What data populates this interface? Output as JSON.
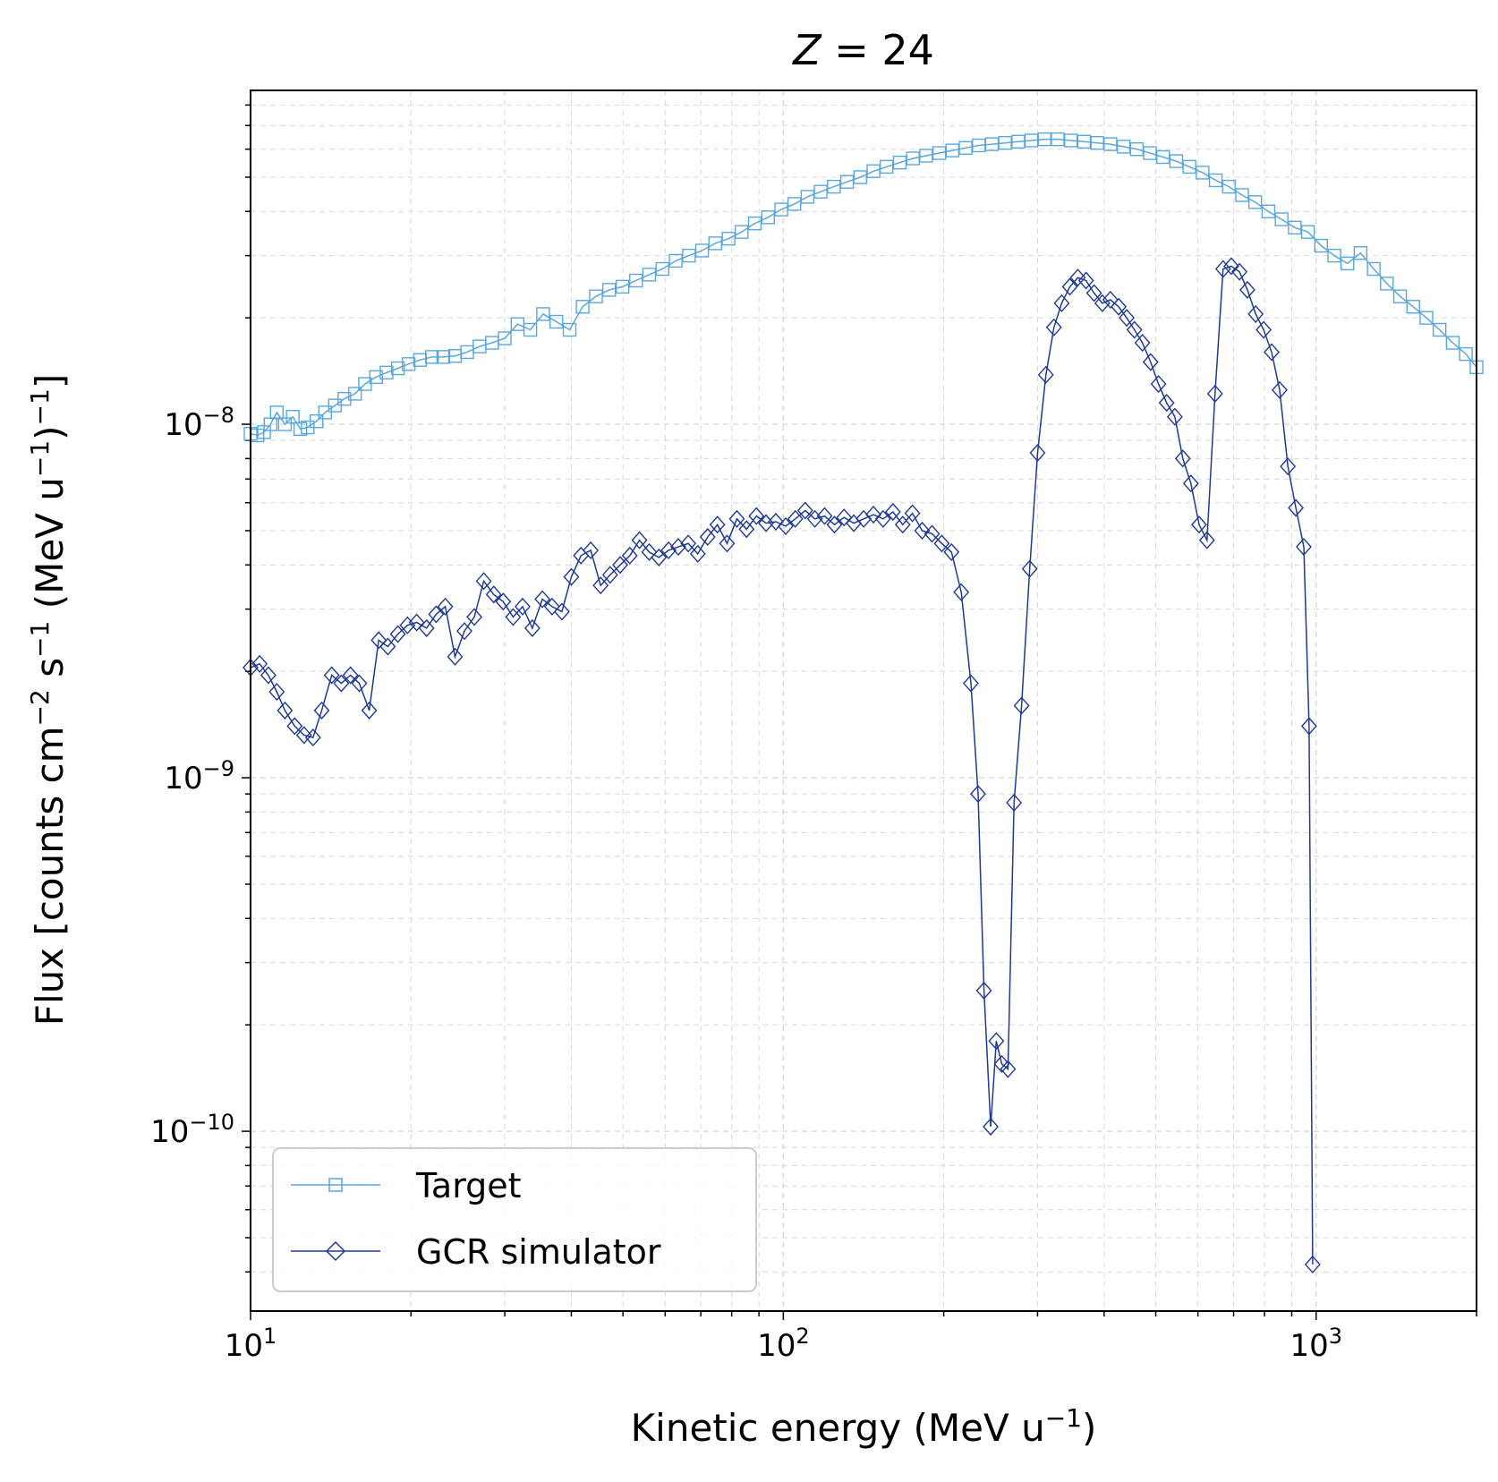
{
  "chart_data": {
    "type": "line",
    "title": {
      "italic": "Z",
      "rest": " = 24"
    },
    "xlabel": {
      "base": "Kinetic energy (MeV u",
      "sup": "−1",
      "end": ")"
    },
    "ylabel": {
      "p1": "Flux [counts cm",
      "s1": "−2",
      "p2": " s",
      "s2": "−1",
      "p3": " (MeV u",
      "s3": "−1",
      "p4": ")",
      "s4": "−1",
      "p5": "]"
    },
    "x_scale": "log",
    "y_scale": "log",
    "xlim": [
      10,
      2000
    ],
    "ylim": [
      3.1e-11,
      8.8e-08
    ],
    "x_ticks": [
      {
        "value": 10,
        "base": "10",
        "exp": "1"
      },
      {
        "value": 100,
        "base": "10",
        "exp": "2"
      },
      {
        "value": 1000,
        "base": "10",
        "exp": "3"
      }
    ],
    "y_ticks": [
      {
        "value": 1e-10,
        "base": "10",
        "exp": "−10"
      },
      {
        "value": 1e-09,
        "base": "10",
        "exp": "−9"
      },
      {
        "value": 1e-08,
        "base": "10",
        "exp": "−8"
      }
    ],
    "grid": true,
    "legend_position": "bottom-left",
    "series": [
      {
        "name": "Target",
        "color": "#5aa7dc",
        "marker": "square",
        "points": [
          [
            10.0,
            9.4e-09
          ],
          [
            10.3,
            9.3e-09
          ],
          [
            10.6,
            9.5e-09
          ],
          [
            10.9,
            1e-08
          ],
          [
            11.2,
            1.08e-08
          ],
          [
            11.6,
            1e-08
          ],
          [
            12.0,
            1.05e-08
          ],
          [
            12.4,
            9.7e-09
          ],
          [
            12.8,
            9.8e-09
          ],
          [
            13.3,
            1.02e-08
          ],
          [
            13.8,
            1.08e-08
          ],
          [
            14.4,
            1.13e-08
          ],
          [
            15.0,
            1.18e-08
          ],
          [
            15.7,
            1.22e-08
          ],
          [
            16.4,
            1.3e-08
          ],
          [
            17.2,
            1.36e-08
          ],
          [
            18.0,
            1.4e-08
          ],
          [
            18.9,
            1.44e-08
          ],
          [
            19.8,
            1.48e-08
          ],
          [
            20.8,
            1.52e-08
          ],
          [
            21.9,
            1.55e-08
          ],
          [
            23.0,
            1.55e-08
          ],
          [
            24.2,
            1.56e-08
          ],
          [
            25.5,
            1.6e-08
          ],
          [
            26.9,
            1.66e-08
          ],
          [
            28.4,
            1.7e-08
          ],
          [
            30.0,
            1.75e-08
          ],
          [
            31.7,
            1.92e-08
          ],
          [
            33.5,
            1.85e-08
          ],
          [
            35.4,
            2.05e-08
          ],
          [
            37.5,
            1.95e-08
          ],
          [
            39.7,
            1.85e-08
          ],
          [
            42.0,
            2.15e-08
          ],
          [
            44.5,
            2.3e-08
          ],
          [
            47.1,
            2.4e-08
          ],
          [
            49.9,
            2.45e-08
          ],
          [
            52.9,
            2.55e-08
          ],
          [
            56.0,
            2.65e-08
          ],
          [
            59.3,
            2.75e-08
          ],
          [
            62.8,
            2.9e-08
          ],
          [
            66.5,
            3e-08
          ],
          [
            70.4,
            3.1e-08
          ],
          [
            74.5,
            3.25e-08
          ],
          [
            78.9,
            3.35e-08
          ],
          [
            83.5,
            3.5e-08
          ],
          [
            88.4,
            3.7e-08
          ],
          [
            93.6,
            3.85e-08
          ],
          [
            99.1,
            4.05e-08
          ],
          [
            104.9,
            4.2e-08
          ],
          [
            111.0,
            4.4e-08
          ],
          [
            117.5,
            4.55e-08
          ],
          [
            124.4,
            4.7e-08
          ],
          [
            131.7,
            4.85e-08
          ],
          [
            139.4,
            5e-08
          ],
          [
            147.6,
            5.2e-08
          ],
          [
            156.2,
            5.35e-08
          ],
          [
            165.4,
            5.5e-08
          ],
          [
            175.1,
            5.65e-08
          ],
          [
            185.3,
            5.75e-08
          ],
          [
            196.2,
            5.85e-08
          ],
          [
            207.7,
            5.95e-08
          ],
          [
            219.8,
            6.05e-08
          ],
          [
            232.7,
            6.15e-08
          ],
          [
            246.3,
            6.2e-08
          ],
          [
            260.7,
            6.25e-08
          ],
          [
            276.0,
            6.3e-08
          ],
          [
            292.1,
            6.35e-08
          ],
          [
            309.2,
            6.4e-08
          ],
          [
            327.3,
            6.4e-08
          ],
          [
            346.5,
            6.35e-08
          ],
          [
            366.8,
            6.3e-08
          ],
          [
            388.3,
            6.25e-08
          ],
          [
            411.0,
            6.2e-08
          ],
          [
            435.1,
            6.1e-08
          ],
          [
            460.6,
            6e-08
          ],
          [
            487.5,
            5.85e-08
          ],
          [
            516.1,
            5.7e-08
          ],
          [
            546.3,
            5.55e-08
          ],
          [
            578.3,
            5.35e-08
          ],
          [
            612.1,
            5.15e-08
          ],
          [
            648.0,
            4.9e-08
          ],
          [
            685.9,
            4.7e-08
          ],
          [
            726.1,
            4.45e-08
          ],
          [
            768.6,
            4.25e-08
          ],
          [
            813.6,
            4e-08
          ],
          [
            861.3,
            3.8e-08
          ],
          [
            911.7,
            3.6e-08
          ],
          [
            965.1,
            3.5e-08
          ],
          [
            1021.6,
            3.2e-08
          ],
          [
            1081.4,
            3e-08
          ],
          [
            1144.7,
            2.85e-08
          ],
          [
            1211.7,
            3.05e-08
          ],
          [
            1282.6,
            2.75e-08
          ],
          [
            1357.7,
            2.5e-08
          ],
          [
            1437.2,
            2.3e-08
          ],
          [
            1521.3,
            2.15e-08
          ],
          [
            1610.4,
            2e-08
          ],
          [
            1704.7,
            1.85e-08
          ],
          [
            1804.5,
            1.7e-08
          ],
          [
            1910.1,
            1.58e-08
          ],
          [
            2000.0,
            1.45e-08
          ]
        ]
      },
      {
        "name": "GCR simulator",
        "color": "#1f3a93",
        "marker": "diamond",
        "points": [
          [
            10.0,
            2.05e-09
          ],
          [
            10.4,
            2.1e-09
          ],
          [
            10.8,
            1.95e-09
          ],
          [
            11.2,
            1.75e-09
          ],
          [
            11.6,
            1.55e-09
          ],
          [
            12.1,
            1.4e-09
          ],
          [
            12.6,
            1.32e-09
          ],
          [
            13.1,
            1.3e-09
          ],
          [
            13.6,
            1.55e-09
          ],
          [
            14.2,
            1.95e-09
          ],
          [
            14.8,
            1.85e-09
          ],
          [
            15.4,
            1.95e-09
          ],
          [
            16.0,
            1.85e-09
          ],
          [
            16.7,
            1.55e-09
          ],
          [
            17.4,
            2.45e-09
          ],
          [
            18.1,
            2.35e-09
          ],
          [
            18.9,
            2.55e-09
          ],
          [
            19.7,
            2.7e-09
          ],
          [
            20.5,
            2.75e-09
          ],
          [
            21.4,
            2.65e-09
          ],
          [
            22.3,
            2.9e-09
          ],
          [
            23.2,
            3.05e-09
          ],
          [
            24.2,
            2.2e-09
          ],
          [
            25.2,
            2.6e-09
          ],
          [
            26.3,
            2.85e-09
          ],
          [
            27.4,
            3.6e-09
          ],
          [
            28.6,
            3.3e-09
          ],
          [
            29.8,
            3.15e-09
          ],
          [
            31.1,
            2.85e-09
          ],
          [
            32.4,
            3.05e-09
          ],
          [
            33.8,
            2.65e-09
          ],
          [
            35.3,
            3.2e-09
          ],
          [
            36.8,
            3.05e-09
          ],
          [
            38.4,
            2.95e-09
          ],
          [
            40.0,
            3.7e-09
          ],
          [
            41.7,
            4.25e-09
          ],
          [
            43.5,
            4.4e-09
          ],
          [
            45.4,
            3.5e-09
          ],
          [
            47.3,
            3.75e-09
          ],
          [
            49.4,
            4e-09
          ],
          [
            51.5,
            4.25e-09
          ],
          [
            53.7,
            4.7e-09
          ],
          [
            56.0,
            4.35e-09
          ],
          [
            58.4,
            4.2e-09
          ],
          [
            60.9,
            4.4e-09
          ],
          [
            63.5,
            4.5e-09
          ],
          [
            66.3,
            4.6e-09
          ],
          [
            69.1,
            4.3e-09
          ],
          [
            72.1,
            4.8e-09
          ],
          [
            75.2,
            5.2e-09
          ],
          [
            78.4,
            4.6e-09
          ],
          [
            81.8,
            5.4e-09
          ],
          [
            85.3,
            5.05e-09
          ],
          [
            89.0,
            5.5e-09
          ],
          [
            92.8,
            5.25e-09
          ],
          [
            96.8,
            5.3e-09
          ],
          [
            101.0,
            5.15e-09
          ],
          [
            105.3,
            5.4e-09
          ],
          [
            109.9,
            5.7e-09
          ],
          [
            114.6,
            5.4e-09
          ],
          [
            119.5,
            5.5e-09
          ],
          [
            124.7,
            5.2e-09
          ],
          [
            130.0,
            5.45e-09
          ],
          [
            135.6,
            5.25e-09
          ],
          [
            141.5,
            5.4e-09
          ],
          [
            147.6,
            5.55e-09
          ],
          [
            153.9,
            5.4e-09
          ],
          [
            160.6,
            5.65e-09
          ],
          [
            167.5,
            5.2e-09
          ],
          [
            174.7,
            5.6e-09
          ],
          [
            182.2,
            5e-09
          ],
          [
            190.1,
            4.9e-09
          ],
          [
            198.3,
            4.6e-09
          ],
          [
            206.8,
            4.35e-09
          ],
          [
            215.7,
            3.35e-09
          ],
          [
            224.9,
            1.85e-09
          ],
          [
            232.0,
            9e-10
          ],
          [
            238.0,
            2.5e-10
          ],
          [
            245.0,
            1.03e-10
          ],
          [
            251.0,
            1.8e-10
          ],
          [
            257.0,
            1.55e-10
          ],
          [
            264.0,
            1.5e-10
          ],
          [
            271.0,
            8.5e-10
          ],
          [
            280.0,
            1.6e-09
          ],
          [
            290.0,
            3.9e-09
          ],
          [
            300.0,
            8.3e-09
          ],
          [
            311.0,
            1.38e-08
          ],
          [
            322.0,
            1.88e-08
          ],
          [
            333.0,
            2.2e-08
          ],
          [
            345.0,
            2.45e-08
          ],
          [
            357.0,
            2.6e-08
          ],
          [
            370.0,
            2.55e-08
          ],
          [
            383.0,
            2.35e-08
          ],
          [
            397.0,
            2.2e-08
          ],
          [
            411.0,
            2.25e-08
          ],
          [
            426.0,
            2.15e-08
          ],
          [
            441.0,
            2e-08
          ],
          [
            456.0,
            1.85e-08
          ],
          [
            472.0,
            1.7e-08
          ],
          [
            489.0,
            1.5e-08
          ],
          [
            506.0,
            1.3e-08
          ],
          [
            524.0,
            1.15e-08
          ],
          [
            543.0,
            1.05e-08
          ],
          [
            562.0,
            8e-09
          ],
          [
            582.0,
            6.8e-09
          ],
          [
            603.0,
            5.2e-09
          ],
          [
            624.0,
            4.7e-09
          ],
          [
            646.0,
            1.22e-08
          ],
          [
            669.0,
            2.75e-08
          ],
          [
            693.0,
            2.8e-08
          ],
          [
            718.0,
            2.7e-08
          ],
          [
            743.0,
            2.4e-08
          ],
          [
            770.0,
            2.05e-08
          ],
          [
            797.0,
            1.85e-08
          ],
          [
            825.0,
            1.6e-08
          ],
          [
            854.0,
            1.25e-08
          ],
          [
            885.0,
            7.6e-09
          ],
          [
            916.0,
            5.8e-09
          ],
          [
            948.0,
            4.5e-09
          ],
          [
            970.0,
            1.4e-09
          ],
          [
            985.0,
            4.2e-11
          ]
        ]
      }
    ]
  }
}
